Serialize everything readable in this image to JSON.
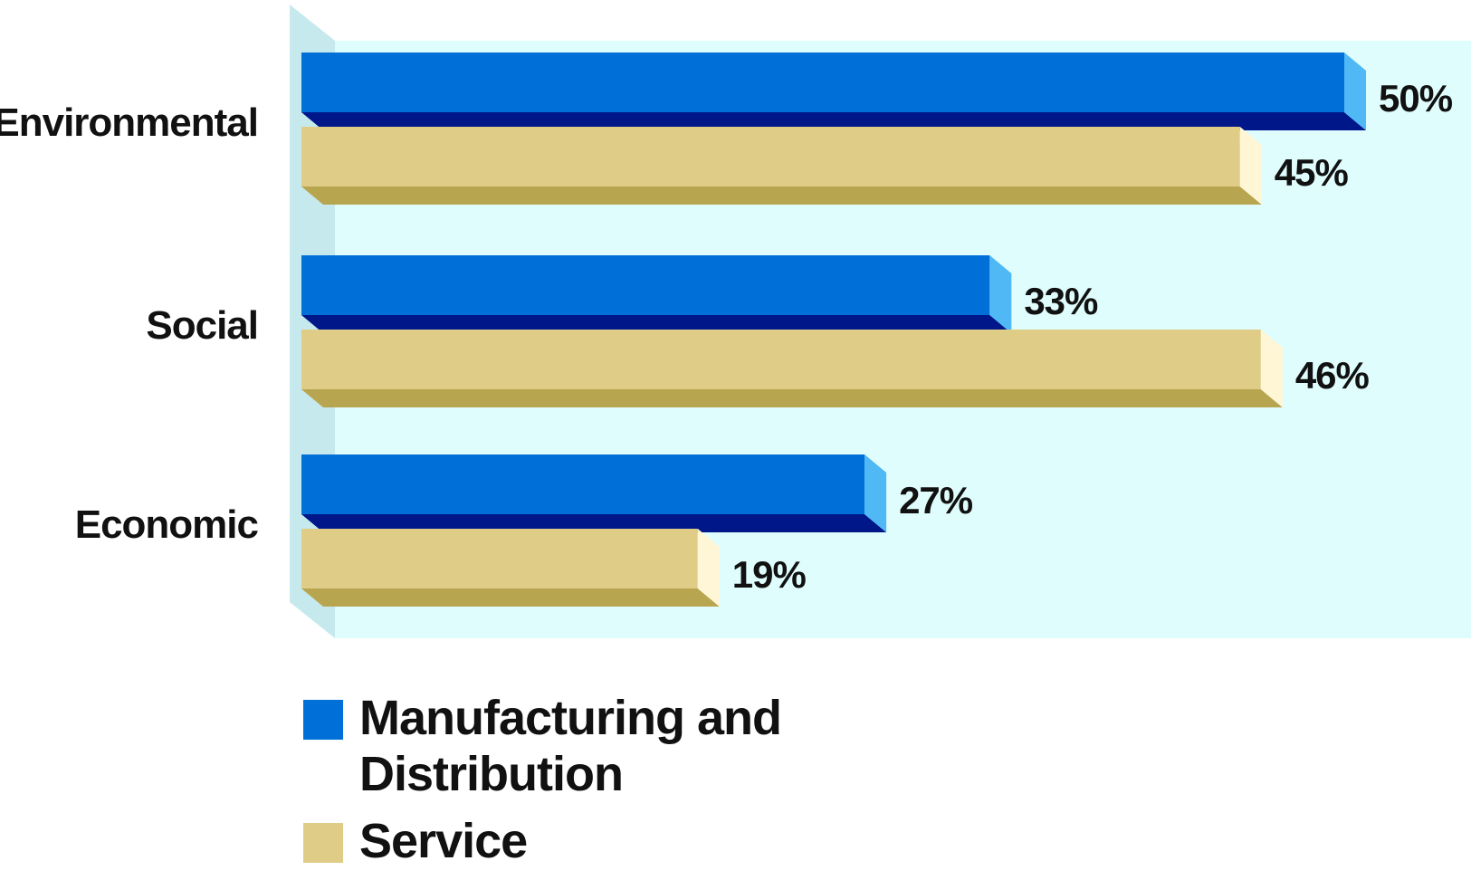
{
  "chart_data": {
    "type": "bar",
    "orientation": "horizontal",
    "categories": [
      "Environmental",
      "Social",
      "Economic"
    ],
    "series": [
      {
        "name": "Manufacturing and Distribution",
        "values": [
          50,
          33,
          27
        ],
        "value_labels": [
          "50%",
          "33%",
          "27%"
        ],
        "color": "#0070d8",
        "top_color": "#4fb8f5",
        "shade_color": "#00178a"
      },
      {
        "name": "Service",
        "values": [
          45,
          46,
          19
        ],
        "value_labels": [
          "45%",
          "46%",
          "19%"
        ],
        "color": "#dfcd87",
        "top_color": "#fff6d6",
        "shade_color": "#b8a550"
      }
    ],
    "xlim": [
      0,
      50
    ],
    "unit": "%",
    "grid": false,
    "legend_position": "bottom-left",
    "background_color": "#e0fdfd",
    "wall_color": "#c6e9ee"
  }
}
